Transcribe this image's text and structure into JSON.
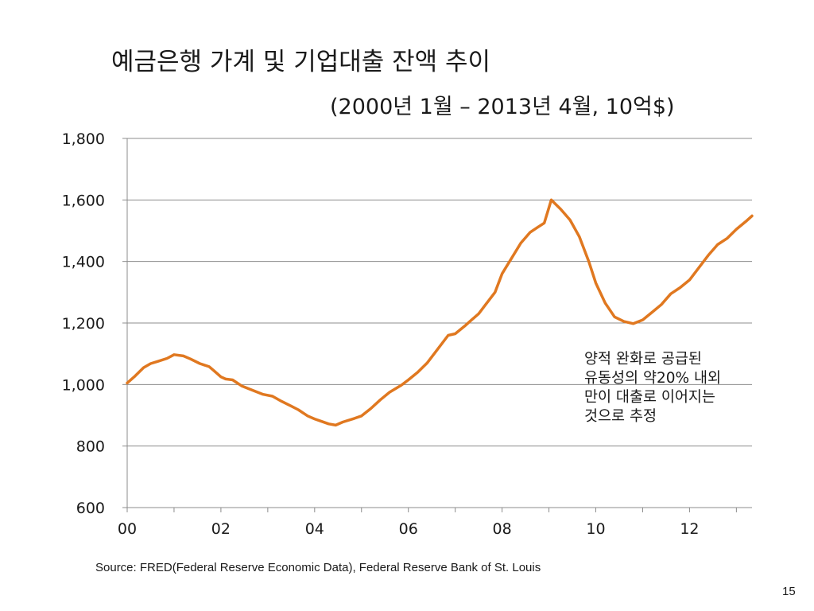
{
  "title": "예금은행 가계 및 기업대출 잔액 추이",
  "subtitle": "(2000년 1월 – 2013년 4월, 10억$)",
  "annotation": {
    "lines": [
      "양적 완화로 공급된",
      "유동성의 약20% 내외",
      "만이 대출로 이어지는",
      "것으로 추정"
    ]
  },
  "source": "Source:  FRED(Federal Reserve Economic Data), Federal Reserve Bank of St. Louis",
  "page_number": "15",
  "chart_data": {
    "type": "line",
    "title": "",
    "xlabel": "",
    "ylabel": "",
    "ylim": [
      600,
      1800
    ],
    "yticks": [
      600,
      800,
      1000,
      1200,
      1400,
      1600,
      1800
    ],
    "ytick_labels": [
      "600",
      "800",
      "1,000",
      "1,200",
      "1,400",
      "1,600",
      "1,800"
    ],
    "xlim": [
      2000.0,
      2013.333
    ],
    "xticks": [
      2000,
      2002,
      2004,
      2006,
      2008,
      2010,
      2012
    ],
    "xtick_labels": [
      "00",
      "02",
      "04",
      "06",
      "08",
      "10",
      "12"
    ],
    "grid": "horizontal",
    "line_color": "#E07820",
    "series": [
      {
        "name": "",
        "x": [
          2000.0,
          2000.15,
          2000.35,
          2000.5,
          2000.65,
          2000.85,
          2001.0,
          2001.2,
          2001.35,
          2001.55,
          2001.75,
          2001.85,
          2002.0,
          2002.1,
          2002.25,
          2002.45,
          2002.7,
          2002.9,
          2003.1,
          2003.3,
          2003.5,
          2003.65,
          2003.85,
          2004.0,
          2004.15,
          2004.3,
          2004.45,
          2004.6,
          2004.85,
          2005.0,
          2005.2,
          2005.4,
          2005.6,
          2005.85,
          2006.0,
          2006.2,
          2006.4,
          2006.6,
          2006.85,
          2007.0,
          2007.2,
          2007.35,
          2007.5,
          2007.7,
          2007.85,
          2008.0,
          2008.2,
          2008.4,
          2008.6,
          2008.75,
          2008.9,
          2009.05,
          2009.25,
          2009.45,
          2009.65,
          2009.85,
          2010.0,
          2010.2,
          2010.4,
          2010.6,
          2010.8,
          2011.0,
          2011.2,
          2011.4,
          2011.6,
          2011.8,
          2012.0,
          2012.2,
          2012.4,
          2012.6,
          2012.8,
          2013.0,
          2013.2,
          2013.333
        ],
        "values": [
          1005,
          1025,
          1055,
          1068,
          1075,
          1085,
          1097,
          1093,
          1083,
          1068,
          1058,
          1045,
          1025,
          1018,
          1015,
          995,
          980,
          968,
          962,
          945,
          930,
          918,
          898,
          888,
          880,
          872,
          868,
          878,
          890,
          898,
          922,
          950,
          975,
          998,
          1015,
          1040,
          1070,
          1110,
          1160,
          1165,
          1190,
          1210,
          1230,
          1270,
          1300,
          1360,
          1410,
          1460,
          1495,
          1510,
          1525,
          1600,
          1570,
          1535,
          1480,
          1400,
          1330,
          1265,
          1220,
          1205,
          1198,
          1210,
          1235,
          1260,
          1295,
          1315,
          1340,
          1380,
          1420,
          1455,
          1475,
          1505,
          1530,
          1548
        ]
      }
    ]
  }
}
